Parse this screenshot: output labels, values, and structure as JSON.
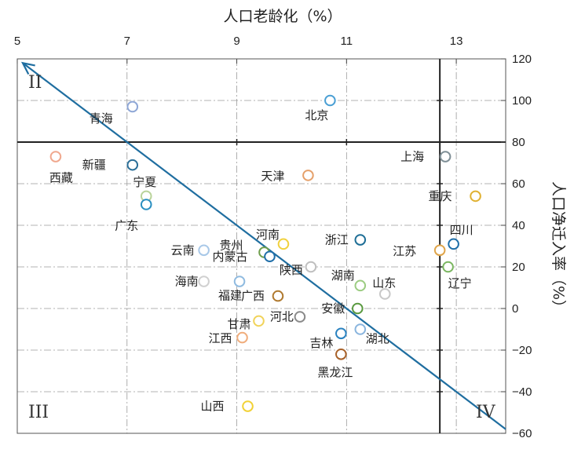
{
  "chart_data": {
    "type": "scatter",
    "title": "",
    "xlabel": "人口老龄化（%）",
    "ylabel": "人口净迁入率（%）",
    "xlim": [
      5,
      13.9
    ],
    "ylim": [
      -60,
      120
    ],
    "x_ticks": [
      "5",
      "7",
      "9",
      "11",
      "13"
    ],
    "y_ticks": [
      "120",
      "100",
      "80",
      "60",
      "40",
      "20",
      "0",
      "−20",
      "−40",
      "−60"
    ],
    "reference_lines": {
      "x": 12.7,
      "y": 80
    },
    "trend_line": {
      "from": [
        5.1,
        118
      ],
      "to": [
        13.9,
        -58
      ]
    },
    "grid": true,
    "quadrant_labels": [
      "II",
      "III",
      "IV"
    ],
    "points": [
      {
        "name": "青海",
        "x": 7.1,
        "y": 97,
        "color": "#8fa7d6"
      },
      {
        "name": "北京",
        "x": 10.7,
        "y": 100,
        "color": "#4a9fd4"
      },
      {
        "name": "西藏",
        "x": 5.7,
        "y": 73,
        "color": "#f0a88e"
      },
      {
        "name": "新疆",
        "x": 7.1,
        "y": 69,
        "color": "#2b6f98"
      },
      {
        "name": "宁夏",
        "x": 7.35,
        "y": 54,
        "color": "#b9d39a"
      },
      {
        "name": "广东",
        "x": 7.35,
        "y": 50,
        "color": "#2a8fc1"
      },
      {
        "name": "天津",
        "x": 10.3,
        "y": 64,
        "color": "#e5a06a"
      },
      {
        "name": "上海",
        "x": 12.8,
        "y": 73,
        "color": "#7f8f96"
      },
      {
        "name": "重庆",
        "x": 13.35,
        "y": 54,
        "color": "#e0b132"
      },
      {
        "name": "四川",
        "x": 12.95,
        "y": 31,
        "color": "#1e6ea8"
      },
      {
        "name": "江苏",
        "x": 12.7,
        "y": 28,
        "color": "#e0a54a"
      },
      {
        "name": "辽宁",
        "x": 12.85,
        "y": 20,
        "color": "#7bb661"
      },
      {
        "name": "浙江",
        "x": 11.25,
        "y": 33,
        "color": "#1e6e96"
      },
      {
        "name": "河南",
        "x": 9.85,
        "y": 31,
        "color": "#f1d13e"
      },
      {
        "name": "贵州",
        "x": 9.5,
        "y": 27,
        "color": "#6f9e4c"
      },
      {
        "name": "内蒙古",
        "x": 9.6,
        "y": 25,
        "color": "#1f6ea8"
      },
      {
        "name": "云南",
        "x": 8.4,
        "y": 28,
        "color": "#a8c8e8"
      },
      {
        "name": "陕西",
        "x": 10.35,
        "y": 20,
        "color": "#bfbfbf"
      },
      {
        "name": "湖南",
        "x": 11.25,
        "y": 11,
        "color": "#9ccc82"
      },
      {
        "name": "山东",
        "x": 11.7,
        "y": 7,
        "color": "#c8c8c8"
      },
      {
        "name": "海南",
        "x": 8.4,
        "y": 13,
        "color": "#d0d0d0"
      },
      {
        "name": "福建",
        "x": 9.05,
        "y": 13,
        "color": "#90bbe0"
      },
      {
        "name": "广西",
        "x": 9.75,
        "y": 6,
        "color": "#b07a30"
      },
      {
        "name": "安徽",
        "x": 11.2,
        "y": 0,
        "color": "#5a9a40"
      },
      {
        "name": "甘肃",
        "x": 9.4,
        "y": -6,
        "color": "#f1d35a"
      },
      {
        "name": "河北",
        "x": 10.15,
        "y": -4,
        "color": "#8a8a8a"
      },
      {
        "name": "江西",
        "x": 9.1,
        "y": -14,
        "color": "#f0ad7c"
      },
      {
        "name": "湖北",
        "x": 11.25,
        "y": -10,
        "color": "#8ab5de"
      },
      {
        "name": "吉林",
        "x": 10.9,
        "y": -12,
        "color": "#2a82c0"
      },
      {
        "name": "黑龙江",
        "x": 10.9,
        "y": -22,
        "color": "#a8622a"
      },
      {
        "name": "山西",
        "x": 9.2,
        "y": -47,
        "color": "#f1d135"
      }
    ]
  }
}
